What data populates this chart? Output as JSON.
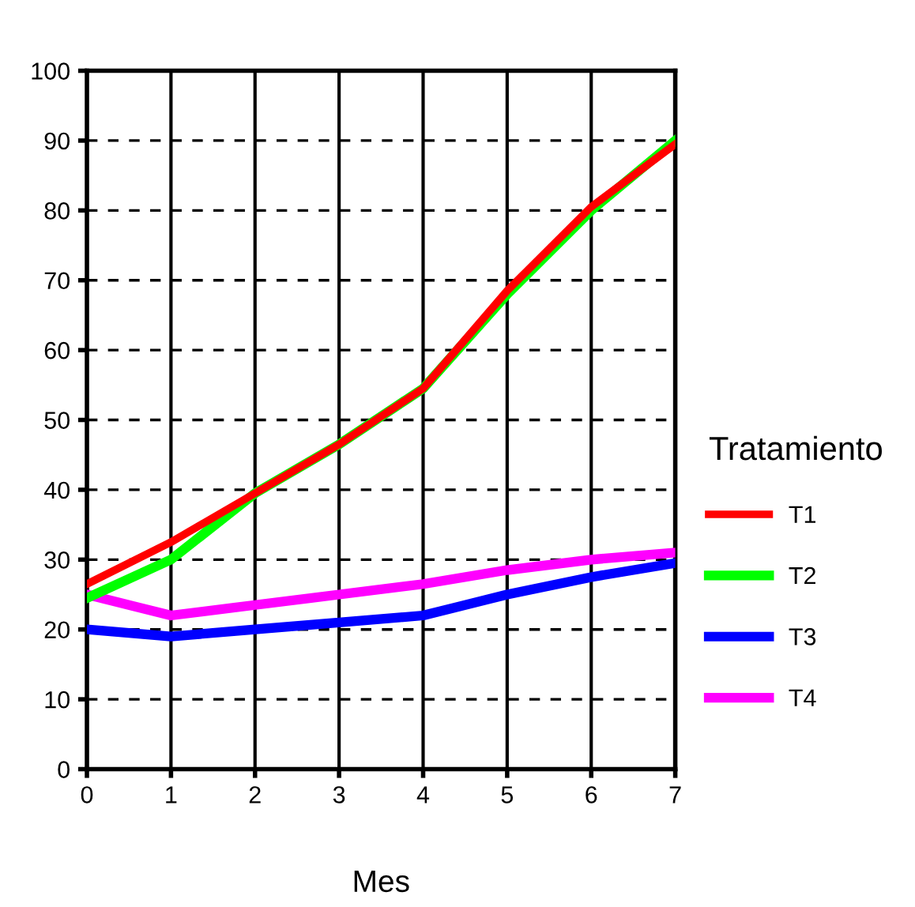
{
  "chart_data": {
    "type": "line",
    "xlabel": "Mes",
    "legend_title": "Tratamiento",
    "x": [
      0,
      1,
      2,
      3,
      4,
      5,
      6,
      7
    ],
    "series": [
      {
        "name": "T1",
        "color": "#ff0000",
        "values": [
          26.5,
          32.5,
          39.5,
          46.5,
          54.5,
          68.5,
          80.5,
          89.5
        ]
      },
      {
        "name": "T2",
        "color": "#00ff00",
        "values": [
          24.5,
          30,
          39.5,
          46.5,
          54.5,
          68,
          80,
          90
        ]
      },
      {
        "name": "T3",
        "color": "#0000ff",
        "values": [
          20,
          19,
          20,
          21,
          22,
          25,
          27.5,
          29.5
        ]
      },
      {
        "name": "T4",
        "color": "#ff00ff",
        "values": [
          25,
          22,
          23.5,
          25,
          26.5,
          28.5,
          30,
          31
        ]
      }
    ],
    "xlim": [
      0,
      7
    ],
    "xticks": [
      0,
      1,
      2,
      3,
      4,
      5,
      6,
      7
    ],
    "ylim": [
      0,
      100
    ],
    "yticks": [
      0,
      10,
      20,
      30,
      40,
      50,
      60,
      70,
      80,
      90,
      100
    ],
    "grid": true,
    "legend": "right",
    "marker": "none",
    "line_style": "solid"
  }
}
